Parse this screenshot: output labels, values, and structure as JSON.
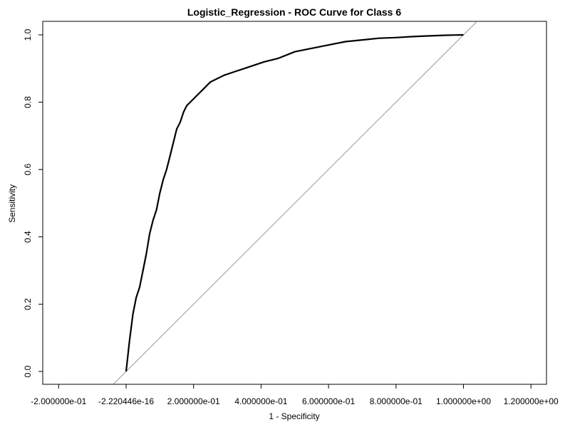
{
  "chart_data": {
    "type": "line",
    "title": "Logistic_Regression - ROC Curve for Class 6",
    "xlabel": "1 - Specificity",
    "ylabel": "Sensitivity",
    "xlim": [
      -0.2,
      1.2
    ],
    "ylim": [
      0.0,
      1.0
    ],
    "grid": false,
    "legend": "none",
    "x_ticks": [
      {
        "value": -0.2,
        "label": "-2.000000e-01"
      },
      {
        "value": 0.0,
        "label": "-2.220446e-16"
      },
      {
        "value": 0.2,
        "label": "2.000000e-01"
      },
      {
        "value": 0.4,
        "label": "4.000000e-01"
      },
      {
        "value": 0.6,
        "label": "6.000000e-01"
      },
      {
        "value": 0.8,
        "label": "8.000000e-01"
      },
      {
        "value": 1.0,
        "label": "1.000000e+00"
      },
      {
        "value": 1.2,
        "label": "1.200000e+00"
      }
    ],
    "y_ticks": [
      {
        "value": 0.0,
        "label": "0.0"
      },
      {
        "value": 0.2,
        "label": "0.2"
      },
      {
        "value": 0.4,
        "label": "0.4"
      },
      {
        "value": 0.6,
        "label": "0.6"
      },
      {
        "value": 0.8,
        "label": "0.8"
      },
      {
        "value": 1.0,
        "label": "1.0"
      }
    ],
    "series": [
      {
        "color": "#000000",
        "x": [
          0.0,
          0.01,
          0.02,
          0.03,
          0.04,
          0.05,
          0.06,
          0.07,
          0.08,
          0.09,
          0.1,
          0.11,
          0.12,
          0.13,
          0.14,
          0.15,
          0.16,
          0.17,
          0.18,
          0.19,
          0.2,
          0.21,
          0.22,
          0.23,
          0.24,
          0.25,
          0.27,
          0.29,
          0.32,
          0.35,
          0.38,
          0.41,
          0.45,
          0.5,
          0.55,
          0.6,
          0.65,
          0.7,
          0.75,
          0.8,
          0.85,
          0.9,
          0.95,
          1.0
        ],
        "y": [
          0.0,
          0.09,
          0.17,
          0.22,
          0.25,
          0.3,
          0.35,
          0.41,
          0.45,
          0.48,
          0.53,
          0.57,
          0.6,
          0.64,
          0.68,
          0.72,
          0.74,
          0.77,
          0.79,
          0.8,
          0.81,
          0.82,
          0.83,
          0.84,
          0.85,
          0.86,
          0.87,
          0.88,
          0.89,
          0.9,
          0.91,
          0.92,
          0.93,
          0.95,
          0.96,
          0.97,
          0.98,
          0.985,
          0.99,
          0.992,
          0.995,
          0.997,
          0.999,
          1.0
        ]
      },
      {
        "color": "#808080",
        "x": [
          -0.2,
          1.2
        ],
        "y": [
          -0.2,
          1.2
        ]
      }
    ]
  }
}
